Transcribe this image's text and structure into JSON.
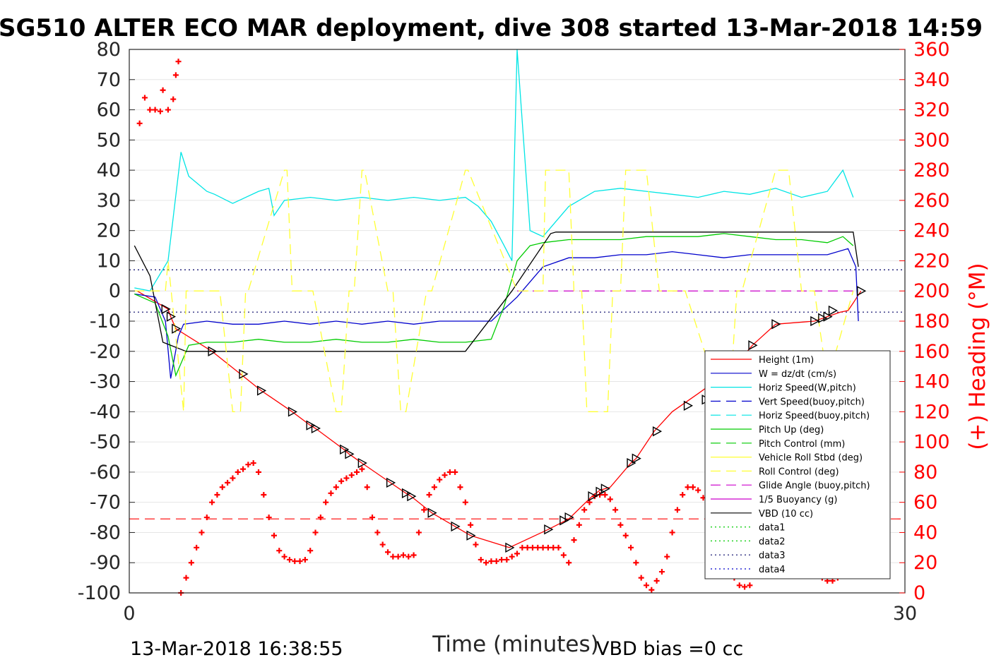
{
  "title": "SG510 ALTER ECO MAR deployment, dive 308 started 13-Mar-2018 14:59",
  "footer": {
    "timestamp": "13-Mar-2018 16:38:55",
    "vbd_bias": "VBD bias =0 cc"
  },
  "colors": {
    "red": "#ff0000",
    "blue": "#0000cc",
    "cyan": "#00e5e5",
    "green": "#00cc00",
    "yellow": "#ffff33",
    "magenta": "#cc00cc",
    "black": "#000000"
  },
  "chart_data": {
    "type": "line",
    "title": "SG510 ALTER ECO MAR deployment, dive 308 started 13-Mar-2018 14:59",
    "xlabel": "Time (minutes)",
    "ylabel": "",
    "y2label": "(+) Heading (°M)",
    "xlim": [
      0,
      30
    ],
    "ylim": [
      -100,
      80
    ],
    "y2lim": [
      0,
      360
    ],
    "x_ticks": [
      0,
      30
    ],
    "y_ticks": [
      80,
      70,
      60,
      50,
      40,
      30,
      20,
      10,
      0,
      -10,
      -20,
      -30,
      -40,
      -50,
      -60,
      -70,
      -80,
      -90,
      -100
    ],
    "y2_ticks": [
      360,
      340,
      320,
      300,
      280,
      260,
      240,
      220,
      200,
      180,
      160,
      140,
      120,
      100,
      80,
      60,
      40,
      20,
      0
    ],
    "grid": true,
    "legend_position": "bottom-right",
    "legend": [
      {
        "label": "Height (1m)",
        "color": "#ff0000",
        "dash": "solid"
      },
      {
        "label": "W = dz/dt (cm/s)",
        "color": "#0000cc",
        "dash": "solid"
      },
      {
        "label": "Horiz Speed(W,pitch)",
        "color": "#00e5e5",
        "dash": "solid"
      },
      {
        "label": "Vert Speed(buoy,pitch)",
        "color": "#0000cc",
        "dash": "dashed"
      },
      {
        "label": "Horiz Speed(buoy,pitch)",
        "color": "#00e5e5",
        "dash": "dashed"
      },
      {
        "label": "Pitch Up (deg)",
        "color": "#00cc00",
        "dash": "solid"
      },
      {
        "label": "Pitch Control (mm)",
        "color": "#00cc00",
        "dash": "dashed"
      },
      {
        "label": "Vehicle Roll Stbd (deg)",
        "color": "#ffff33",
        "dash": "solid"
      },
      {
        "label": "Roll Control (deg)",
        "color": "#ffff33",
        "dash": "dashed"
      },
      {
        "label": "Glide Angle (buoy,pitch)",
        "color": "#cc00cc",
        "dash": "dashed"
      },
      {
        "label": "1/5 Buoyancy (g)",
        "color": "#cc00cc",
        "dash": "solid"
      },
      {
        "label": "VBD (10 cc)",
        "color": "#000000",
        "dash": "solid"
      },
      {
        "label": "data1",
        "color": "#00cc00",
        "dash": "dotted"
      },
      {
        "label": "data2",
        "color": "#00cc00",
        "dash": "dotted"
      },
      {
        "label": "data3",
        "color": "#000066",
        "dash": "dotted"
      },
      {
        "label": "data4",
        "color": "#0000cc",
        "dash": "dotted"
      }
    ],
    "series": [
      {
        "name": "Height (1m)",
        "axis": "left",
        "color": "#ff0000",
        "dash": "solid",
        "x": [
          0.3,
          1.5,
          1.6,
          1.8,
          3.2,
          4.3,
          5.1,
          6.3,
          7.0,
          7.2,
          8.3,
          8.5,
          9.0,
          10.1,
          10.7,
          10.9,
          11.7,
          12.6,
          13.2,
          14.7,
          16.2,
          17.0,
          17.9,
          18.2,
          18.6,
          19.4,
          19.6,
          20.3,
          21.0,
          22.0,
          23.3,
          24.1,
          25.0,
          26.5,
          27.0,
          27.5,
          27.8,
          28.0,
          28.3
        ],
        "y": [
          0,
          -6,
          -8.5,
          -12.5,
          -20,
          -27.5,
          -33,
          -40,
          -44.5,
          -45.5,
          -52.5,
          -54,
          -57,
          -63.5,
          -67,
          -68,
          -73.5,
          -78,
          -81,
          -85,
          -79,
          -75.5,
          -68,
          -66,
          -65,
          -57,
          -55.5,
          -46.5,
          -40,
          -34,
          -26,
          -18,
          -11,
          -10,
          -8.5,
          -7,
          -6.5,
          -4,
          0
        ]
      },
      {
        "name": "W = dz/dt (cm/s)",
        "axis": "left",
        "color": "#0000cc",
        "dash": "solid",
        "x": [
          0.2,
          1.0,
          1.4,
          1.6,
          1.9,
          2.1,
          3.0,
          4.0,
          5.0,
          6.0,
          7.0,
          8.0,
          9.0,
          10.0,
          11.0,
          12.0,
          13.0,
          14.0,
          15.0,
          16.0,
          17.0,
          18.0,
          19.0,
          20.0,
          21.0,
          22.0,
          23.0,
          24.0,
          25.0,
          26.0,
          27.0,
          27.8,
          28.1,
          28.2
        ],
        "y": [
          -1,
          -2,
          -10,
          -29,
          -15,
          -11,
          -10,
          -11,
          -11,
          -10,
          -11,
          -10,
          -11,
          -10,
          -11,
          -10,
          -10,
          -10,
          -2,
          8,
          11,
          11,
          12,
          12,
          13,
          12,
          11,
          12,
          12,
          12,
          12,
          14,
          8,
          -10
        ]
      },
      {
        "name": "Horiz Speed(W,pitch)",
        "axis": "left",
        "color": "#00e5e5",
        "dash": "solid",
        "x": [
          0.2,
          0.8,
          1.5,
          2.0,
          2.3,
          3.0,
          3.3,
          4.0,
          5.0,
          5.4,
          5.6,
          6.0,
          7.0,
          8.0,
          9.0,
          10.0,
          11.0,
          12.0,
          13.0,
          13.5,
          14.0,
          14.5,
          14.8,
          15.0,
          15.5,
          16.0,
          17.0,
          18.0,
          19.0,
          20.0,
          21.0,
          22.0,
          23.0,
          24.0,
          25.0,
          26.0,
          27.0,
          27.6,
          28.0
        ],
        "y": [
          1,
          0,
          10,
          46,
          38,
          33,
          32,
          29,
          33,
          34,
          25,
          30,
          31,
          30,
          31,
          30,
          31,
          30,
          31,
          28,
          23,
          15,
          10,
          80,
          20,
          18,
          28,
          33,
          34,
          33,
          32,
          31,
          33,
          32,
          34,
          31,
          33,
          40,
          31
        ]
      },
      {
        "name": "Pitch Up (deg)",
        "axis": "left",
        "color": "#00cc00",
        "dash": "solid",
        "x": [
          0.2,
          1.0,
          1.5,
          1.8,
          2.0,
          2.3,
          3.0,
          4.0,
          5.0,
          6.0,
          7.0,
          8.0,
          9.0,
          10.0,
          11.0,
          12.0,
          13.0,
          14.0,
          14.5,
          15.0,
          15.5,
          16.0,
          17.0,
          18.0,
          19.0,
          20.0,
          21.0,
          22.0,
          23.0,
          24.0,
          25.0,
          26.0,
          27.0,
          27.6,
          28.0
        ],
        "y": [
          -1,
          -4,
          -15,
          -28,
          -24,
          -18,
          -17,
          -17,
          -16,
          -17,
          -17,
          -16,
          -17,
          -17,
          -16,
          -17,
          -17,
          -16,
          -5,
          10,
          15,
          16,
          17,
          17,
          17,
          18,
          18,
          18,
          19,
          18,
          17,
          17,
          16,
          18,
          15
        ]
      },
      {
        "name": "VBD (10 cc)",
        "axis": "left",
        "color": "#000000",
        "dash": "solid",
        "x": [
          0.2,
          0.8,
          1.3,
          1.9,
          2.2,
          3.0,
          5.0,
          8.0,
          10.0,
          12.0,
          13.0,
          14.8,
          16.3,
          16.5,
          18.0,
          20.0,
          22.0,
          24.0,
          26.0,
          28.0,
          28.2
        ],
        "y": [
          15,
          5,
          -17,
          -19,
          -20,
          -20,
          -20,
          -20,
          -20,
          -20,
          -20,
          0,
          19,
          19.5,
          19.5,
          19.5,
          19.5,
          19.5,
          19.5,
          19.5,
          8
        ]
      },
      {
        "name": "Roll Control (deg)",
        "axis": "left",
        "color": "#ffff33",
        "dash": "dashed",
        "x": [
          0.2,
          1.0,
          1.4,
          1.5,
          2.1,
          2.2,
          3.0,
          3.5,
          4.0,
          4.3,
          4.5,
          4.6,
          6.0,
          6.1,
          6.3,
          6.8,
          7.0,
          7.1,
          8.0,
          8.2,
          8.5,
          8.7,
          9.0,
          9.1,
          10.0,
          10.2,
          10.5,
          10.7,
          11.5,
          11.7,
          13.0,
          13.1,
          15.0,
          16.0,
          16.1,
          17.0,
          17.2,
          17.5,
          17.7,
          18.5,
          18.7,
          19.0,
          19.2,
          20.0,
          20.5,
          21.0,
          21.5,
          23.0,
          23.2,
          23.5,
          23.7,
          25.0,
          25.5,
          26.0,
          26.5,
          27.0,
          28.0
        ],
        "y": [
          0,
          0,
          0,
          10,
          -40,
          0,
          0,
          0,
          -40,
          -40,
          0,
          0,
          40,
          40,
          0,
          0,
          0,
          0,
          -40,
          -40,
          0,
          0,
          40,
          40,
          0,
          0,
          -40,
          -40,
          0,
          0,
          40,
          40,
          0,
          0,
          40,
          40,
          0,
          0,
          -40,
          -40,
          0,
          0,
          40,
          40,
          0,
          0,
          0,
          -40,
          -40,
          0,
          0,
          40,
          40,
          0,
          0,
          -30,
          0
        ]
      }
    ],
    "reference_lines": [
      {
        "axis": "left",
        "y": 7,
        "color": "#000066",
        "dash": "dotted"
      },
      {
        "axis": "left",
        "y": -7,
        "color": "#000066",
        "dash": "dotted"
      },
      {
        "axis": "left",
        "y": -75.5,
        "color": "#ff0000",
        "dash": "dashed"
      },
      {
        "axis": "left",
        "y": 0,
        "color": "#cc00cc",
        "dash": "dashed",
        "x_range": [
          15,
          28
        ]
      }
    ],
    "heading_points": {
      "axis": "right",
      "color": "#ff0000",
      "marker": "plus",
      "x": [
        0.4,
        0.6,
        0.8,
        1.0,
        1.2,
        1.3,
        1.5,
        1.7,
        1.8,
        1.9,
        2.0,
        2.2,
        2.4,
        2.6,
        2.8,
        3.0,
        3.2,
        3.4,
        3.6,
        3.8,
        4.0,
        4.2,
        4.4,
        4.6,
        4.8,
        5.0,
        5.2,
        5.4,
        5.6,
        5.8,
        6.0,
        6.2,
        6.4,
        6.6,
        6.8,
        7.0,
        7.2,
        7.4,
        7.6,
        7.8,
        8.0,
        8.2,
        8.4,
        8.6,
        8.8,
        9.0,
        9.2,
        9.4,
        9.6,
        9.8,
        10.0,
        10.2,
        10.4,
        10.6,
        10.8,
        11.0,
        11.2,
        11.4,
        11.6,
        11.8,
        12.0,
        12.2,
        12.4,
        12.6,
        12.8,
        13.0,
        13.2,
        13.4,
        13.6,
        13.8,
        14.0,
        14.2,
        14.4,
        14.6,
        14.8,
        15.0,
        15.2,
        15.4,
        15.6,
        15.8,
        16.0,
        16.2,
        16.4,
        16.6,
        16.8,
        17.0,
        17.2,
        17.4,
        17.6,
        17.8,
        18.0,
        18.2,
        18.4,
        18.6,
        18.8,
        19.0,
        19.2,
        19.4,
        19.6,
        19.8,
        20.0,
        20.2,
        20.4,
        20.6,
        20.8,
        21.0,
        21.2,
        21.4,
        21.6,
        21.8,
        22.0,
        22.2,
        22.4,
        22.6,
        22.8,
        23.0,
        23.2,
        23.4,
        23.6,
        23.8,
        24.0,
        24.2,
        24.4,
        24.6,
        24.8,
        25.0,
        25.2,
        25.4,
        25.6,
        25.8,
        26.0,
        26.2,
        26.4,
        26.6,
        26.8,
        27.0,
        27.2,
        27.4,
        27.6,
        27.8,
        28.0
      ],
      "y": [
        311,
        328,
        320,
        320,
        319,
        333,
        320,
        327,
        343,
        352,
        0,
        10,
        20,
        30,
        40,
        50,
        60,
        65,
        70,
        73,
        76,
        80,
        82,
        85,
        86,
        80,
        65,
        50,
        38,
        28,
        24,
        22,
        21,
        21,
        22,
        28,
        40,
        50,
        60,
        66,
        70,
        74,
        76,
        78,
        80,
        82,
        70,
        50,
        40,
        32,
        27,
        24,
        24,
        25,
        24,
        25,
        40,
        55,
        65,
        70,
        75,
        78,
        80,
        80,
        70,
        60,
        45,
        32,
        22,
        20,
        21,
        21,
        22,
        22,
        24,
        26,
        30,
        30,
        30,
        30,
        30,
        30,
        30,
        30,
        25,
        20,
        35,
        45,
        55,
        60,
        64,
        65,
        65,
        62,
        55,
        45,
        38,
        30,
        20,
        10,
        5,
        2,
        8,
        14,
        24,
        40,
        55,
        65,
        70,
        70,
        68,
        63,
        60,
        55,
        48,
        35,
        20,
        10,
        5,
        4,
        5,
        12,
        24,
        45,
        58,
        65,
        68,
        68,
        67,
        60,
        50,
        40,
        30,
        20,
        10,
        8,
        8,
        10,
        25,
        40,
        50
      ]
    },
    "markers": {
      "axis": "left",
      "color": "#000000",
      "marker": "triangle",
      "x": [
        1.4,
        1.6,
        1.8,
        3.2,
        4.4,
        5.1,
        6.3,
        7.0,
        7.2,
        8.3,
        8.5,
        9.0,
        10.1,
        10.7,
        10.9,
        11.7,
        12.6,
        13.2,
        14.7,
        16.2,
        16.8,
        17.0,
        17.9,
        18.2,
        18.4,
        19.4,
        19.6,
        20.4,
        21.6,
        22.3,
        24.1,
        25.0,
        26.5,
        26.8,
        27.0,
        27.2,
        28.3
      ],
      "y": [
        -6,
        -8.5,
        -12.5,
        -20,
        -27.5,
        -33,
        -40,
        -44.5,
        -45.5,
        -52.5,
        -54,
        -57,
        -63.5,
        -67,
        -68,
        -73.5,
        -78,
        -81,
        -85,
        -79,
        -76,
        -75,
        -68,
        -66.5,
        -65.5,
        -57,
        -55.5,
        -46.5,
        -38,
        -36,
        -18,
        -11,
        -10,
        -9,
        -8.5,
        -6.5,
        0
      ]
    }
  }
}
